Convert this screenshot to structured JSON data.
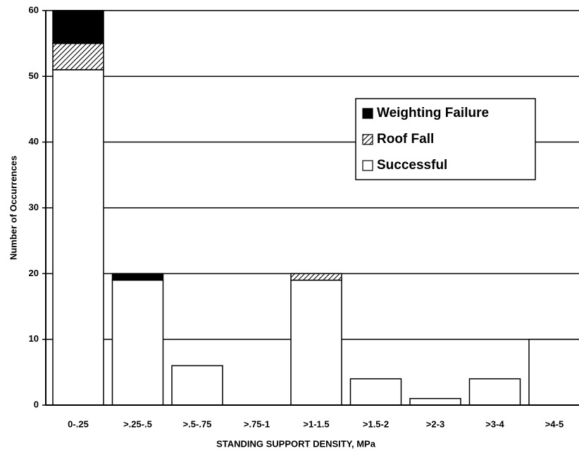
{
  "chart_data": {
    "type": "stacked_bar",
    "x_label": "STANDING SUPPORT DENSITY, MPa",
    "y_label": "Number of Occurrences",
    "categories": [
      "0-.25",
      ">.25-.5",
      ">.5-.75",
      ">.75-1",
      ">1-1.5",
      ">1.5-2",
      ">2-3",
      ">3-4",
      ">4-5"
    ],
    "series": [
      {
        "name": "Weighting Failure",
        "color": "#000000",
        "hatch": false,
        "values": [
          5,
          1,
          0,
          0,
          0,
          0,
          0,
          0,
          0
        ]
      },
      {
        "name": "Roof Fall",
        "color": "#000000",
        "hatch": true,
        "values": [
          4,
          0,
          0,
          0,
          1,
          0,
          0,
          0,
          0
        ]
      },
      {
        "name": "Successful",
        "color": "#ffffff",
        "hatch": false,
        "values": [
          51,
          19,
          6,
          0,
          19,
          4,
          1,
          4,
          10
        ]
      }
    ],
    "ylim": [
      0,
      60
    ],
    "yticks": [
      0,
      10,
      20,
      30,
      40,
      50,
      60
    ],
    "grid": true
  }
}
